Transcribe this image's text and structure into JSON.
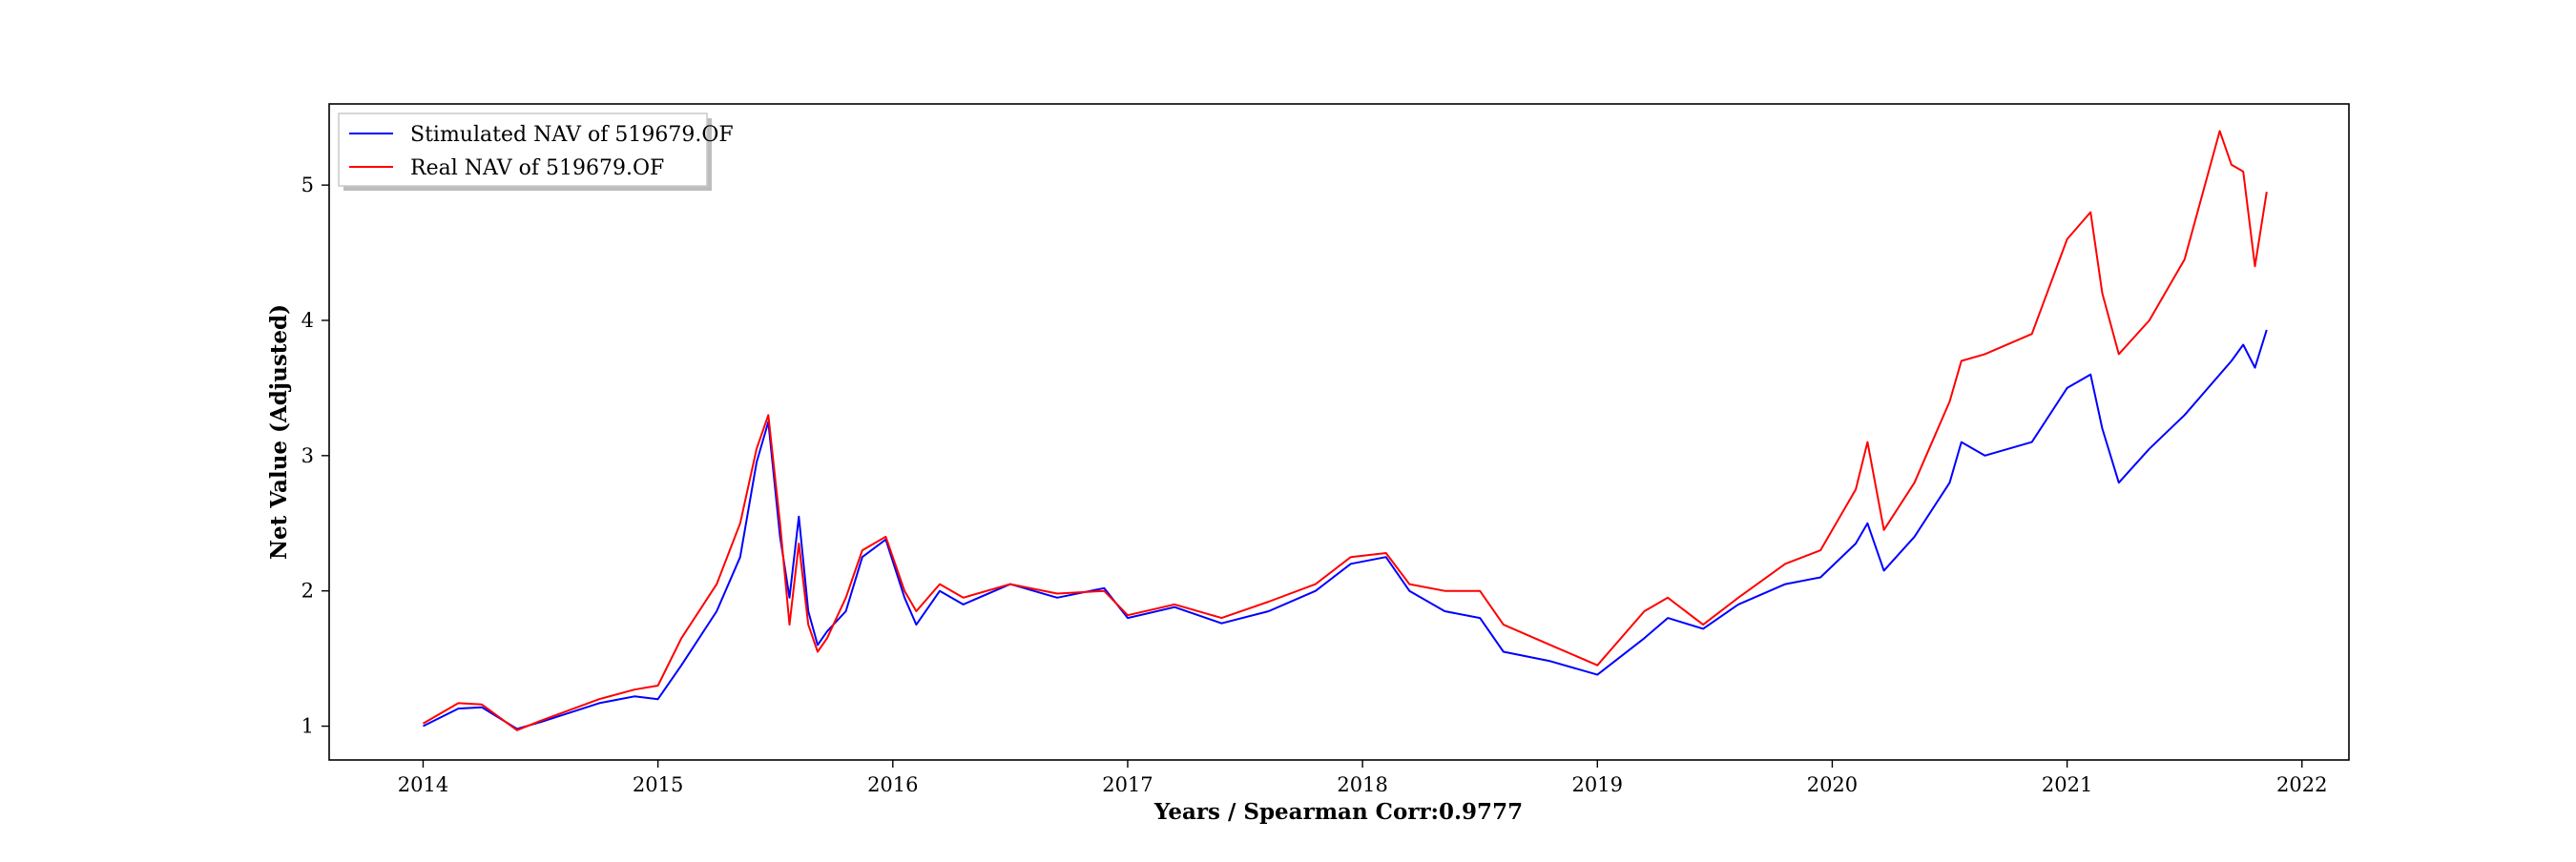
{
  "chart_data": {
    "type": "line",
    "xlabel": "Years / Spearman Corr:0.9777",
    "ylabel": "Net Value (Adjusted)",
    "x_ticks": [
      "2014",
      "2015",
      "2016",
      "2017",
      "2018",
      "2019",
      "2020",
      "2021",
      "2022"
    ],
    "y_ticks": [
      "1",
      "2",
      "3",
      "4",
      "5"
    ],
    "xlim": [
      2013.6,
      2022.2
    ],
    "ylim": [
      0.75,
      5.6
    ],
    "grid": false,
    "legend_position": "top-left",
    "series": [
      {
        "name": "Stimulated NAV of 519679.OF",
        "color": "#0000ff",
        "points": [
          [
            2014.0,
            1.0
          ],
          [
            2014.15,
            1.13
          ],
          [
            2014.25,
            1.14
          ],
          [
            2014.4,
            0.98
          ],
          [
            2014.5,
            1.03
          ],
          [
            2014.75,
            1.17
          ],
          [
            2014.9,
            1.22
          ],
          [
            2015.0,
            1.2
          ],
          [
            2015.1,
            1.45
          ],
          [
            2015.25,
            1.85
          ],
          [
            2015.35,
            2.25
          ],
          [
            2015.42,
            2.95
          ],
          [
            2015.47,
            3.25
          ],
          [
            2015.52,
            2.4
          ],
          [
            2015.56,
            1.95
          ],
          [
            2015.6,
            2.55
          ],
          [
            2015.64,
            1.85
          ],
          [
            2015.68,
            1.6
          ],
          [
            2015.72,
            1.7
          ],
          [
            2015.8,
            1.85
          ],
          [
            2015.87,
            2.25
          ],
          [
            2015.97,
            2.38
          ],
          [
            2016.05,
            1.95
          ],
          [
            2016.1,
            1.75
          ],
          [
            2016.2,
            2.0
          ],
          [
            2016.3,
            1.9
          ],
          [
            2016.5,
            2.05
          ],
          [
            2016.7,
            1.95
          ],
          [
            2016.9,
            2.02
          ],
          [
            2017.0,
            1.8
          ],
          [
            2017.2,
            1.88
          ],
          [
            2017.4,
            1.76
          ],
          [
            2017.6,
            1.85
          ],
          [
            2017.8,
            2.0
          ],
          [
            2017.95,
            2.2
          ],
          [
            2018.1,
            2.25
          ],
          [
            2018.2,
            2.0
          ],
          [
            2018.35,
            1.85
          ],
          [
            2018.5,
            1.8
          ],
          [
            2018.6,
            1.55
          ],
          [
            2018.8,
            1.48
          ],
          [
            2019.0,
            1.38
          ],
          [
            2019.2,
            1.65
          ],
          [
            2019.3,
            1.8
          ],
          [
            2019.45,
            1.72
          ],
          [
            2019.6,
            1.9
          ],
          [
            2019.8,
            2.05
          ],
          [
            2019.95,
            2.1
          ],
          [
            2020.1,
            2.35
          ],
          [
            2020.15,
            2.5
          ],
          [
            2020.22,
            2.15
          ],
          [
            2020.35,
            2.4
          ],
          [
            2020.5,
            2.8
          ],
          [
            2020.55,
            3.1
          ],
          [
            2020.65,
            3.0
          ],
          [
            2020.85,
            3.1
          ],
          [
            2021.0,
            3.5
          ],
          [
            2021.1,
            3.6
          ],
          [
            2021.15,
            3.2
          ],
          [
            2021.22,
            2.8
          ],
          [
            2021.35,
            3.05
          ],
          [
            2021.5,
            3.3
          ],
          [
            2021.7,
            3.7
          ],
          [
            2021.75,
            3.82
          ],
          [
            2021.8,
            3.65
          ],
          [
            2021.85,
            3.93
          ]
        ]
      },
      {
        "name": "Real NAV of 519679.OF",
        "color": "#ff0000",
        "points": [
          [
            2014.0,
            1.02
          ],
          [
            2014.15,
            1.17
          ],
          [
            2014.25,
            1.16
          ],
          [
            2014.4,
            0.97
          ],
          [
            2014.5,
            1.04
          ],
          [
            2014.75,
            1.2
          ],
          [
            2014.9,
            1.27
          ],
          [
            2015.0,
            1.3
          ],
          [
            2015.1,
            1.65
          ],
          [
            2015.25,
            2.05
          ],
          [
            2015.35,
            2.5
          ],
          [
            2015.42,
            3.05
          ],
          [
            2015.47,
            3.3
          ],
          [
            2015.52,
            2.5
          ],
          [
            2015.56,
            1.75
          ],
          [
            2015.6,
            2.35
          ],
          [
            2015.64,
            1.75
          ],
          [
            2015.68,
            1.55
          ],
          [
            2015.72,
            1.65
          ],
          [
            2015.8,
            1.95
          ],
          [
            2015.87,
            2.3
          ],
          [
            2015.97,
            2.4
          ],
          [
            2016.05,
            2.0
          ],
          [
            2016.1,
            1.85
          ],
          [
            2016.2,
            2.05
          ],
          [
            2016.3,
            1.95
          ],
          [
            2016.5,
            2.05
          ],
          [
            2016.7,
            1.98
          ],
          [
            2016.9,
            2.0
          ],
          [
            2017.0,
            1.82
          ],
          [
            2017.2,
            1.9
          ],
          [
            2017.4,
            1.8
          ],
          [
            2017.6,
            1.92
          ],
          [
            2017.8,
            2.05
          ],
          [
            2017.95,
            2.25
          ],
          [
            2018.1,
            2.28
          ],
          [
            2018.2,
            2.05
          ],
          [
            2018.35,
            2.0
          ],
          [
            2018.5,
            2.0
          ],
          [
            2018.6,
            1.75
          ],
          [
            2018.8,
            1.6
          ],
          [
            2019.0,
            1.45
          ],
          [
            2019.2,
            1.85
          ],
          [
            2019.3,
            1.95
          ],
          [
            2019.45,
            1.75
          ],
          [
            2019.6,
            1.95
          ],
          [
            2019.8,
            2.2
          ],
          [
            2019.95,
            2.3
          ],
          [
            2020.1,
            2.75
          ],
          [
            2020.15,
            3.1
          ],
          [
            2020.22,
            2.45
          ],
          [
            2020.35,
            2.8
          ],
          [
            2020.5,
            3.4
          ],
          [
            2020.55,
            3.7
          ],
          [
            2020.65,
            3.75
          ],
          [
            2020.85,
            3.9
          ],
          [
            2021.0,
            4.6
          ],
          [
            2021.1,
            4.8
          ],
          [
            2021.15,
            4.2
          ],
          [
            2021.22,
            3.75
          ],
          [
            2021.35,
            4.0
          ],
          [
            2021.5,
            4.45
          ],
          [
            2021.65,
            5.4
          ],
          [
            2021.7,
            5.15
          ],
          [
            2021.75,
            5.1
          ],
          [
            2021.8,
            4.4
          ],
          [
            2021.85,
            4.95
          ]
        ]
      }
    ]
  }
}
